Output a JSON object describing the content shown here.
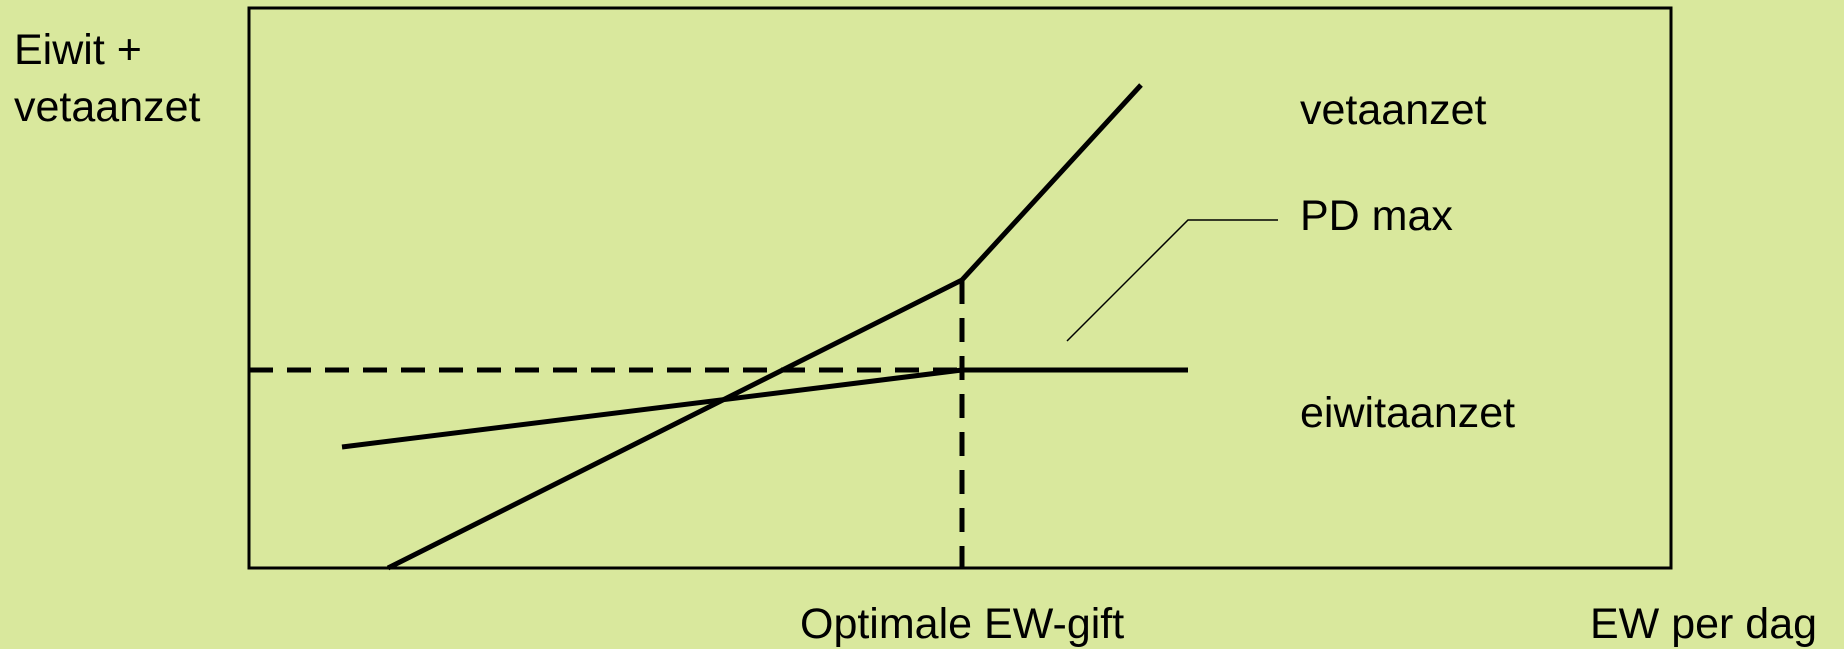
{
  "y_axis_label": [
    "Eiwit +",
    "vetaanzet"
  ],
  "x_axis_label": "EW per dag",
  "x_marker_label": "Optimale EW-gift",
  "curves": {
    "fat": "vetaanzet",
    "pd_max": "PD max",
    "protein": "eiwitaanzet"
  }
}
